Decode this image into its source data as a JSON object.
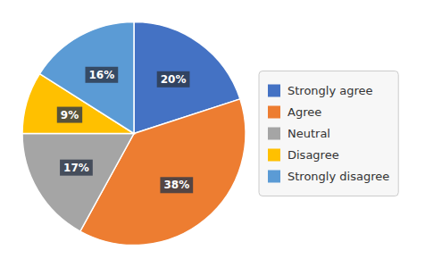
{
  "chart_data": {
    "type": "pie",
    "categories": [
      "Strongly agree",
      "Agree",
      "Neutral",
      "Disagree",
      "Strongly disagree"
    ],
    "values": [
      20,
      38,
      17,
      9,
      16
    ],
    "value_labels": [
      "20%",
      "38%",
      "17%",
      "9%",
      "16%"
    ],
    "colors": [
      "#4472c4",
      "#ed7d31",
      "#a5a5a5",
      "#ffc000",
      "#5b9bd5"
    ],
    "data_labels": true,
    "legend": "right"
  }
}
